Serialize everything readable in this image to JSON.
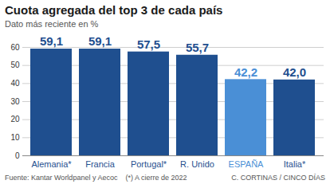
{
  "chart_data": {
    "type": "bar",
    "title": "Cuota agregada del top 3 de cada país",
    "subtitle": "Dato más reciente en %",
    "categories": [
      "Alemania*",
      "Francia",
      "Portugal*",
      "R. Unido",
      "ESPAÑA",
      "Italia*"
    ],
    "values": [
      59.1,
      59.1,
      57.5,
      55.7,
      42.2,
      42.0
    ],
    "value_labels": [
      "59,1",
      "59,1",
      "57,5",
      "55,7",
      "42,2",
      "42,0"
    ],
    "colors": [
      "#1f4f8f",
      "#1f4f8f",
      "#1f4f8f",
      "#1f4f8f",
      "#4a8fd6",
      "#1f4f8f"
    ],
    "ylim": [
      0,
      60
    ],
    "yticks": [
      0,
      10,
      20,
      30,
      40,
      50,
      60
    ],
    "grid": true,
    "data_labels": true,
    "source": "Fuente: Kantar Worldpanel y Aecoc",
    "note": "(*) A cierre de 2022",
    "credit": "C. CORTINAS / CINCO DÍAS"
  }
}
